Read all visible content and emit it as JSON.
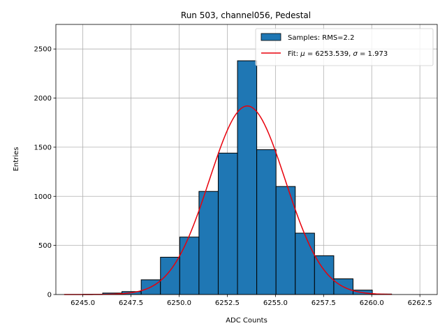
{
  "chart_data": {
    "type": "bar",
    "title": "Run 503, channel056, Pedestal",
    "xlabel": "ADC Counts",
    "ylabel": "Entries",
    "xlim": [
      6243.6,
      6263.4
    ],
    "ylim": [
      0,
      2750
    ],
    "xticks": [
      6245.0,
      6247.5,
      6250.0,
      6252.5,
      6255.0,
      6257.5,
      6260.0,
      6262.5
    ],
    "xtick_labels": [
      "6245.0",
      "6247.5",
      "6250.0",
      "6252.5",
      "6255.0",
      "6257.5",
      "6260.0",
      "6262.5"
    ],
    "yticks": [
      0,
      500,
      1000,
      1500,
      2000,
      2500
    ],
    "ytick_labels": [
      "0",
      "500",
      "1000",
      "1500",
      "2000",
      "2500"
    ],
    "grid": true,
    "legend_position": "top-right",
    "histogram": {
      "name": "Samples: RMS=2.2",
      "color": "#1f77b4",
      "edge_color": "#000000",
      "bin_edges": [
        6244.03,
        6245.03,
        6246.03,
        6247.03,
        6248.03,
        6249.03,
        6250.03,
        6251.03,
        6252.03,
        6253.03,
        6254.03,
        6255.03,
        6256.03,
        6257.03,
        6258.03,
        6259.03,
        6260.03,
        6261.03
      ],
      "counts": [
        0,
        2,
        15,
        30,
        150,
        380,
        585,
        1050,
        1440,
        2380,
        1475,
        1100,
        625,
        395,
        160,
        45,
        5
      ]
    },
    "fit": {
      "name": "Fit: μ = 6253.539, σ = 1.973",
      "label_prefix": "Fit: ",
      "mu_symbol": "μ",
      "mu_text": " = 6253.539, ",
      "sigma_symbol": "σ",
      "sigma_text": " = 1.973",
      "color": "#e8000b",
      "mu": 6253.539,
      "sigma": 1.973,
      "amplitude": 1920,
      "x_range": [
        6244.03,
        6261.03
      ]
    }
  }
}
